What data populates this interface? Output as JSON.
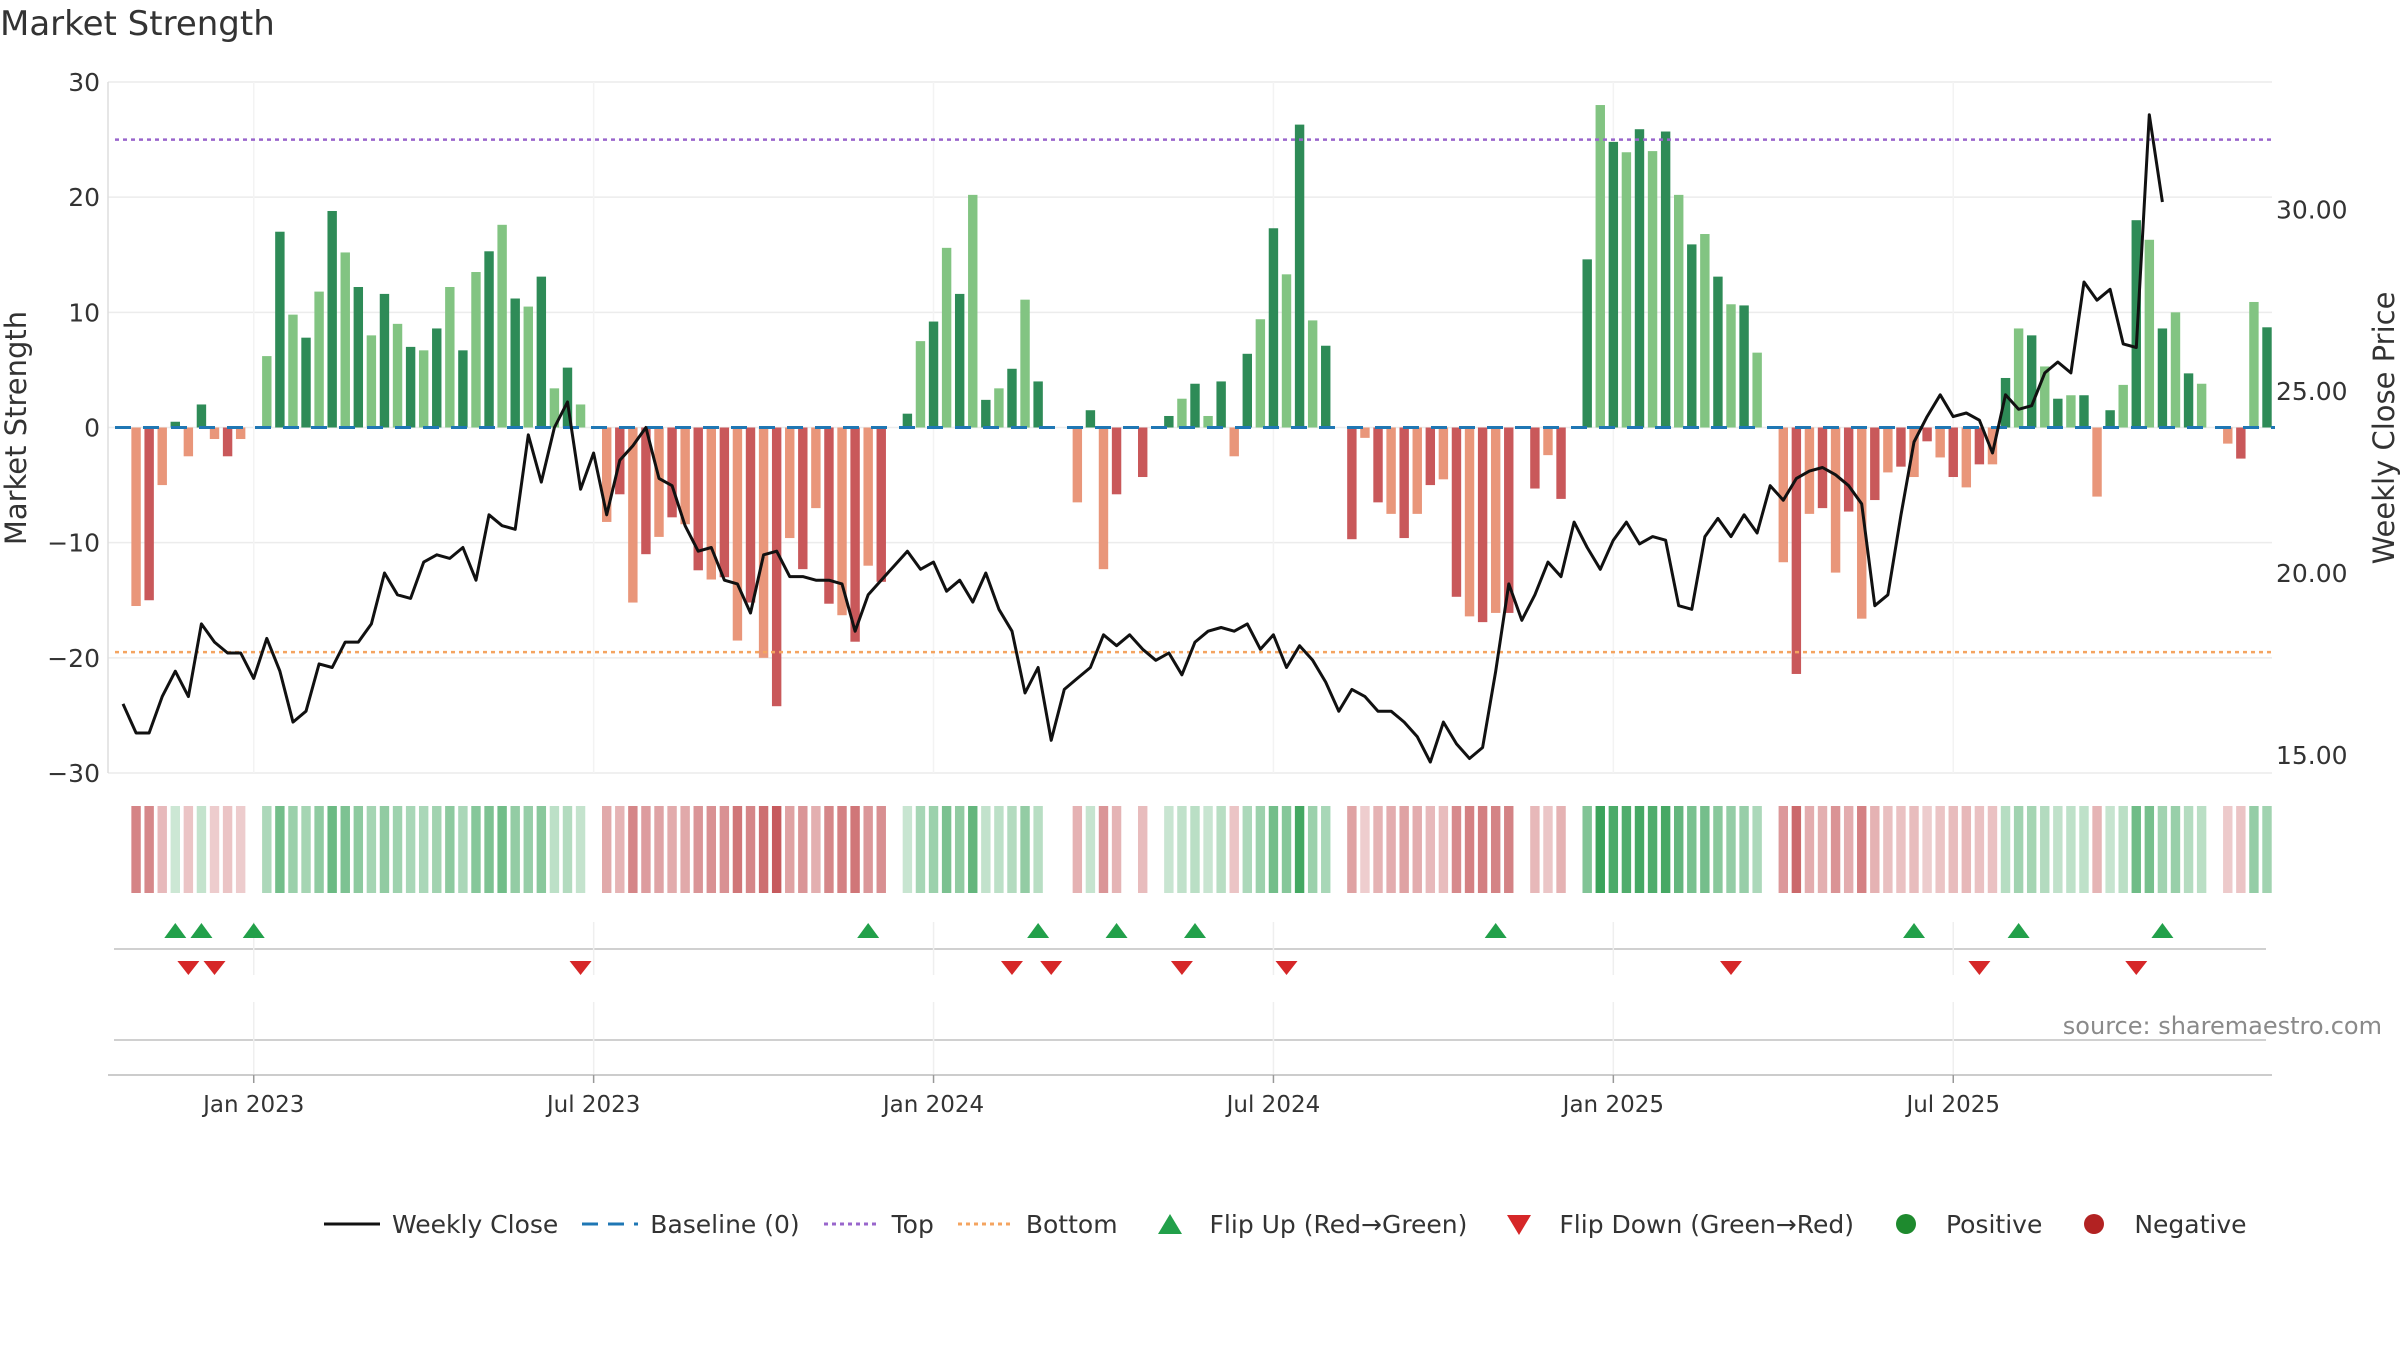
{
  "chart_data": {
    "type": "bar",
    "title": "Market Strength",
    "ylabel": "Market Strength",
    "y2label": "Weekly Close Price",
    "ylim": [
      -30,
      30
    ],
    "y2lim": [
      14.5,
      33.5
    ],
    "yticks": [
      -30,
      -20,
      -10,
      0,
      10,
      20,
      30
    ],
    "yticklabels": [
      "−30",
      "−20",
      "−10",
      "0",
      "10",
      "20",
      "30"
    ],
    "y2ticks": [
      15,
      20,
      25,
      30
    ],
    "y2ticklabels": [
      "15.00",
      "20.00",
      "25.00",
      "30.00"
    ],
    "xtick_weeks": [
      10,
      36,
      62,
      88,
      114,
      140
    ],
    "xticklabels": [
      "Jan 2023",
      "Jul 2023",
      "Jan 2024",
      "Jul 2024",
      "Jan 2025",
      "Jul 2025"
    ],
    "top_level": 25,
    "bottom_level": -19.5,
    "baseline": 0,
    "strength": [
      0,
      -15.5,
      -15,
      -5,
      0.5,
      -2.5,
      2,
      -1,
      -2.5,
      -1,
      0,
      6.2,
      17,
      9.8,
      7.8,
      11.8,
      18.8,
      15.2,
      12.2,
      8,
      11.6,
      9,
      7,
      6.7,
      8.6,
      12.2,
      6.7,
      13.5,
      15.3,
      17.6,
      11.2,
      10.5,
      13.1,
      3.4,
      5.2,
      2,
      0,
      -8.2,
      -5.8,
      -15.2,
      -11,
      -9.5,
      -7.8,
      -8.4,
      -12.4,
      -13.2,
      -13,
      -18.5,
      -15.2,
      -20,
      -24.2,
      -9.6,
      -12.3,
      -7,
      -15.3,
      -16.3,
      -18.6,
      -12,
      -13.4,
      0,
      1.2,
      7.5,
      9.2,
      15.6,
      11.6,
      20.2,
      2.4,
      3.4,
      5.1,
      11.1,
      4,
      0,
      0,
      -6.5,
      1.5,
      -12.3,
      -5.8,
      0,
      -4.3,
      0,
      1,
      2.5,
      3.8,
      1,
      4,
      -2.5,
      6.4,
      9.4,
      17.3,
      13.3,
      26.3,
      9.3,
      7.1,
      0,
      -9.7,
      -0.9,
      -6.5,
      -7.5,
      -9.6,
      -7.5,
      -5,
      -4.5,
      -14.7,
      -16.4,
      -16.9,
      -16.1,
      -16.1,
      0,
      -5.3,
      -2.4,
      -6.2,
      0,
      14.6,
      28,
      24.8,
      23.9,
      25.9,
      24,
      25.7,
      20.2,
      15.9,
      16.8,
      13.1,
      10.7,
      10.6,
      6.5,
      0,
      -11.7,
      -21.4,
      -7.5,
      -7,
      -12.6,
      -7.3,
      -16.6,
      -6.3,
      -3.9,
      -3.4,
      -4.3,
      -1.2,
      -2.6,
      -4.3,
      -5.2,
      -3.2,
      -3.2,
      4.3,
      8.6,
      8,
      5.3,
      2.5,
      2.8,
      2.8,
      -6,
      1.5,
      3.7,
      18,
      16.3,
      8.6,
      10,
      4.7,
      3.8,
      0,
      -1.4,
      -2.7,
      10.9,
      8.7
    ],
    "weekly_close": [
      16.4,
      15.6,
      15.6,
      16.6,
      17.3,
      16.6,
      18.6,
      18.1,
      17.8,
      17.8,
      17.1,
      18.2,
      17.3,
      15.9,
      16.2,
      17.5,
      17.4,
      18.1,
      18.1,
      18.6,
      20,
      19.4,
      19.3,
      20.3,
      20.5,
      20.4,
      20.7,
      19.8,
      21.6,
      21.3,
      21.2,
      23.8,
      22.5,
      24,
      24.7,
      22.3,
      23.3,
      21.6,
      23.1,
      23.5,
      24,
      22.6,
      22.4,
      21.3,
      20.6,
      20.7,
      19.8,
      19.7,
      18.9,
      20.5,
      20.6,
      19.9,
      19.9,
      19.8,
      19.8,
      19.7,
      18.4,
      19.4,
      19.8,
      20.2,
      20.6,
      20.1,
      20.3,
      19.5,
      19.8,
      19.2,
      20,
      19,
      18.4,
      16.7,
      17.4,
      15.4,
      16.8,
      17.1,
      17.4,
      18.3,
      18,
      18.3,
      17.9,
      17.6,
      17.8,
      17.2,
      18.1,
      18.4,
      18.5,
      18.4,
      18.6,
      17.9,
      18.3,
      17.4,
      18,
      17.6,
      17,
      16.2,
      16.8,
      16.6,
      16.2,
      16.2,
      15.9,
      15.5,
      14.8,
      15.9,
      15.3,
      14.9,
      15.2,
      17.3,
      19.7,
      18.7,
      19.4,
      20.3,
      19.9,
      21.4,
      20.7,
      20.1,
      20.9,
      21.4,
      20.8,
      21,
      20.9,
      19.1,
      19,
      21,
      21.5,
      21,
      21.6,
      21.1,
      22.4,
      22,
      22.6,
      22.8,
      22.9,
      22.7,
      22.4,
      21.9,
      19.1,
      19.4,
      21.6,
      23.6,
      24.3,
      24.9,
      24.3,
      24.4,
      24.2,
      23.3,
      24.9,
      24.5,
      24.6,
      25.5,
      25.8,
      25.5,
      28,
      27.5,
      27.8,
      26.3,
      26.2,
      32.6,
      30.2
    ],
    "flip_up_weeks": [
      4,
      6,
      10,
      57,
      70,
      76,
      82,
      105,
      137,
      145,
      156
    ],
    "flip_down_weeks": [
      5,
      7,
      35,
      68,
      71,
      81,
      89,
      123,
      142,
      154
    ],
    "legend": [
      "Weekly Close",
      "Baseline (0)",
      "Top",
      "Bottom",
      "Flip Up (Red→Green)",
      "Flip Down (Green→Red)",
      "Positive",
      "Negative"
    ],
    "source": "source: sharemaestro.com"
  },
  "colors": {
    "pos_dark": "#2e8b57",
    "pos_light": "#82c482",
    "neg_dark": "#c9585a",
    "neg_light": "#e9967a",
    "close_line": "#111111",
    "baseline": "#1f77b4",
    "top_line": "#9966cc",
    "bottom_line": "#f4a460",
    "flip_up": "#22a04a",
    "flip_down": "#d62728",
    "positive": "#1e8a2e",
    "negative": "#b22222"
  }
}
